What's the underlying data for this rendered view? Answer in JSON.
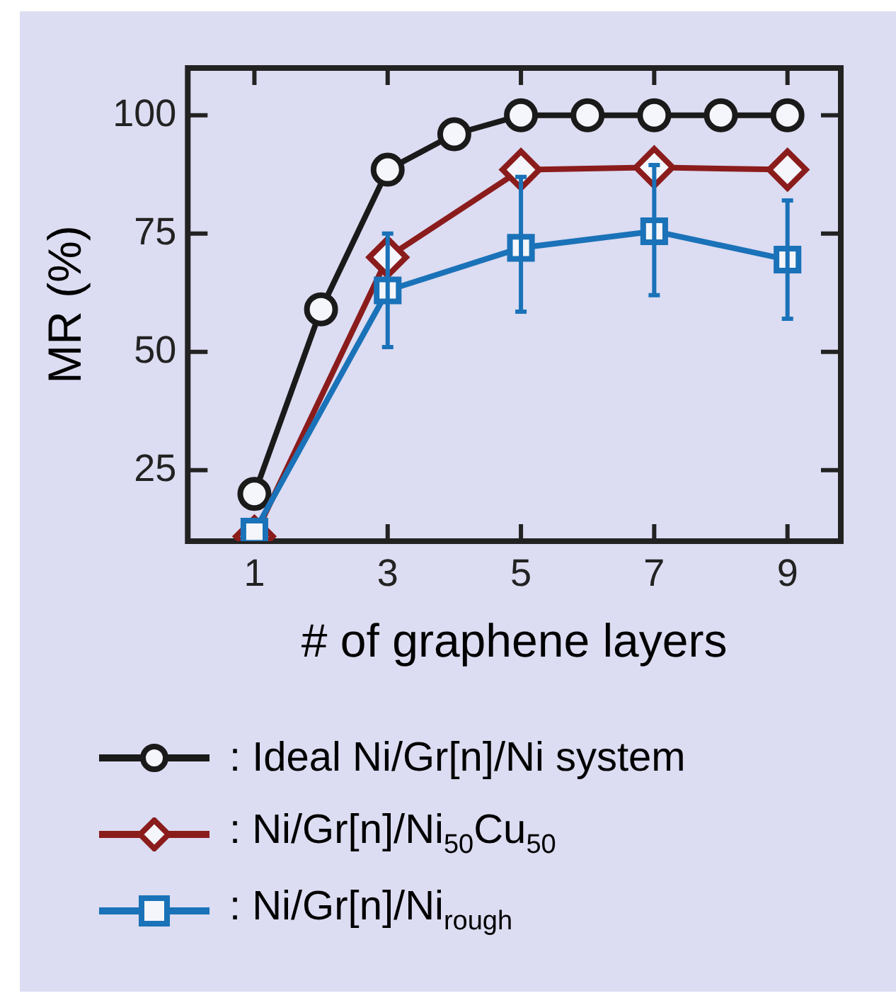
{
  "chart_data": {
    "type": "line",
    "xlabel": "# of graphene layers",
    "ylabel": "MR (%)",
    "xlim": [
      0,
      9.8
    ],
    "xticks": [
      1,
      3,
      5,
      7,
      9
    ],
    "ylim": [
      10,
      110
    ],
    "yticks": [
      25,
      50,
      75,
      100
    ],
    "grid": false,
    "legend": "bottom",
    "line_style": "solid",
    "series": [
      {
        "name": ": Ideal Ni/Gr[n]/Ni system",
        "color": "#1a1a1a",
        "marker": "circle",
        "x": [
          1,
          2,
          3,
          4,
          5,
          6,
          7,
          8,
          9
        ],
        "values": [
          20,
          59,
          88.5,
          96,
          100,
          100,
          100,
          100,
          100
        ]
      },
      {
        "name": ": Ni/Gr[n]/Ni$_{50}$Cu$_{50}$",
        "color": "#8b1c1c",
        "marker": "diamond",
        "x": [
          1,
          3,
          5,
          7,
          9
        ],
        "values": [
          11,
          70,
          88.5,
          89,
          88.5
        ]
      },
      {
        "name": ": Ni/Gr[n]/Ni$_{rough}$",
        "color": "#1a72b8",
        "marker": "square",
        "x": [
          1,
          3,
          5,
          7,
          9
        ],
        "values": [
          12,
          63,
          72,
          75.5,
          69.5
        ],
        "errors": [
          null,
          [
            51,
            75
          ],
          [
            58.5,
            87
          ],
          [
            62,
            89.5
          ],
          [
            57,
            82
          ]
        ]
      }
    ]
  }
}
